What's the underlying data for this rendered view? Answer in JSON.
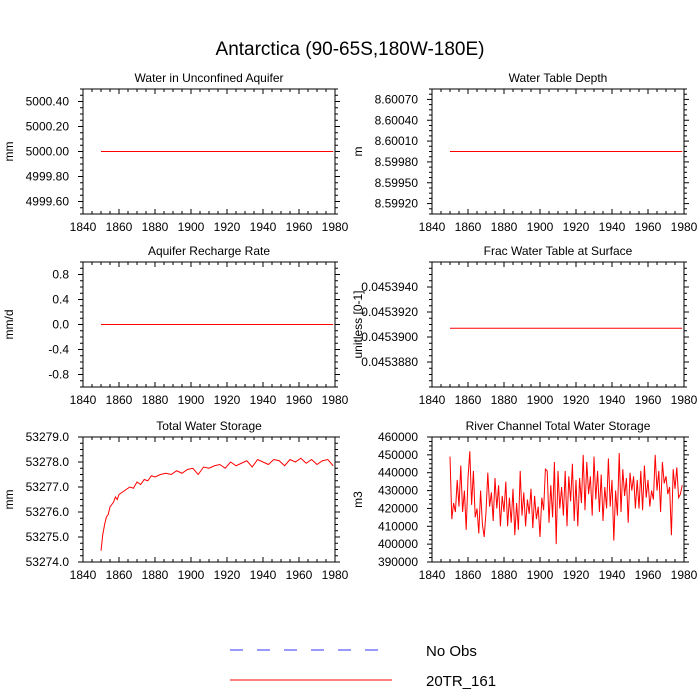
{
  "figure": {
    "title": "Antarctica (90-65S,180W-180E)",
    "legend": {
      "entries": [
        {
          "label": "No Obs",
          "color": "#3333ff",
          "style": "dashed"
        },
        {
          "label": "20TR_161",
          "color": "#ff0000",
          "style": "solid"
        }
      ]
    }
  },
  "chart_data": [
    {
      "type": "line",
      "title": "Water in Unconfined Aquifer",
      "xlabel": "",
      "ylabel": "mm",
      "xlim": [
        1840,
        1980
      ],
      "ylim": [
        4999.5,
        5000.5
      ],
      "xticks": [
        1840,
        1860,
        1880,
        1900,
        1920,
        1940,
        1960,
        1980
      ],
      "xtick_labels": [
        "1840",
        "1860",
        "1880",
        "1900",
        "1920",
        "1940",
        "1960",
        "1980"
      ],
      "yticks": [
        4999.6,
        4999.8,
        5000.0,
        5000.2,
        5000.4
      ],
      "ytick_labels": [
        "4999.60",
        "4999.80",
        "5000.00",
        "5000.20",
        "5000.40"
      ],
      "series": [
        {
          "name": "20TR_161",
          "color": "#ff0000",
          "x": [
            1850,
            1979
          ],
          "values": [
            5000.0,
            5000.0
          ]
        }
      ]
    },
    {
      "type": "line",
      "title": "Water Table Depth",
      "xlabel": "",
      "ylabel": "m",
      "xlim": [
        1840,
        1980
      ],
      "ylim": [
        8.59905,
        8.60085
      ],
      "xticks": [
        1840,
        1860,
        1880,
        1900,
        1920,
        1940,
        1960,
        1980
      ],
      "xtick_labels": [
        "1840",
        "1860",
        "1880",
        "1900",
        "1920",
        "1940",
        "1960",
        "1980"
      ],
      "yticks": [
        8.5992,
        8.5995,
        8.5998,
        8.6001,
        8.6004,
        8.6007
      ],
      "ytick_labels": [
        "8.59920",
        "8.59950",
        "8.59980",
        "8.60010",
        "8.60040",
        "8.60070"
      ],
      "series": [
        {
          "name": "20TR_161",
          "color": "#ff0000",
          "x": [
            1850,
            1979
          ],
          "values": [
            8.59995,
            8.59995
          ]
        }
      ]
    },
    {
      "type": "line",
      "title": "Aquifer Recharge Rate",
      "xlabel": "",
      "ylabel": "mm/d",
      "xlim": [
        1840,
        1980
      ],
      "ylim": [
        -1.0,
        1.0
      ],
      "xticks": [
        1840,
        1860,
        1880,
        1900,
        1920,
        1940,
        1960,
        1980
      ],
      "xtick_labels": [
        "1840",
        "1860",
        "1880",
        "1900",
        "1920",
        "1940",
        "1960",
        "1980"
      ],
      "yticks": [
        -0.8,
        -0.4,
        0.0,
        0.4,
        0.8
      ],
      "ytick_labels": [
        "-0.8",
        "-0.4",
        "0.0",
        "0.4",
        "0.8"
      ],
      "series": [
        {
          "name": "20TR_161",
          "color": "#ff0000",
          "x": [
            1850,
            1979
          ],
          "values": [
            0.0,
            0.0
          ]
        }
      ]
    },
    {
      "type": "line",
      "title": "Frac Water Table at Surface",
      "xlabel": "",
      "ylabel": "unitless [0-1]",
      "xlim": [
        1840,
        1980
      ],
      "ylim": [
        0.045386,
        0.045396
      ],
      "xticks": [
        1840,
        1860,
        1880,
        1900,
        1920,
        1940,
        1960,
        1980
      ],
      "xtick_labels": [
        "1840",
        "1860",
        "1880",
        "1900",
        "1920",
        "1940",
        "1960",
        "1980"
      ],
      "yticks": [
        0.045388,
        0.04539,
        0.045392,
        0.045394
      ],
      "ytick_labels": [
        "0.0453880",
        "0.0453900",
        "0.0453920",
        "0.0453940"
      ],
      "series": [
        {
          "name": "20TR_161",
          "color": "#ff0000",
          "x": [
            1850,
            1979
          ],
          "values": [
            0.0453907,
            0.0453907
          ]
        }
      ]
    },
    {
      "type": "line",
      "title": "Total Water Storage",
      "xlabel": "",
      "ylabel": "mm",
      "xlim": [
        1840,
        1980
      ],
      "ylim": [
        53274.0,
        53279.0
      ],
      "xticks": [
        1840,
        1860,
        1880,
        1900,
        1920,
        1940,
        1960,
        1980
      ],
      "xtick_labels": [
        "1840",
        "1860",
        "1880",
        "1900",
        "1920",
        "1940",
        "1960",
        "1980"
      ],
      "yticks": [
        53274.0,
        53275.0,
        53276.0,
        53277.0,
        53278.0,
        53279.0
      ],
      "ytick_labels": [
        "53274.0",
        "53275.0",
        "53276.0",
        "53277.0",
        "53278.0",
        "53279.0"
      ],
      "series": [
        {
          "name": "20TR_161",
          "color": "#ff0000",
          "x": [
            1850,
            1851,
            1852,
            1853,
            1854,
            1855,
            1856,
            1857,
            1858,
            1859,
            1860,
            1862,
            1864,
            1866,
            1868,
            1870,
            1872,
            1874,
            1876,
            1878,
            1880,
            1883,
            1886,
            1889,
            1892,
            1895,
            1898,
            1901,
            1904,
            1907,
            1910,
            1913,
            1916,
            1919,
            1922,
            1925,
            1928,
            1931,
            1934,
            1937,
            1940,
            1943,
            1946,
            1949,
            1952,
            1955,
            1958,
            1961,
            1964,
            1967,
            1970,
            1973,
            1976,
            1979
          ],
          "values": [
            53274.45,
            53275.1,
            53275.5,
            53275.8,
            53275.9,
            53276.2,
            53276.3,
            53276.4,
            53276.6,
            53276.5,
            53276.7,
            53276.8,
            53276.9,
            53277.0,
            53276.95,
            53277.2,
            53277.1,
            53277.3,
            53277.25,
            53277.45,
            53277.4,
            53277.5,
            53277.55,
            53277.5,
            53277.65,
            53277.55,
            53277.7,
            53277.75,
            53277.5,
            53277.8,
            53277.75,
            53277.85,
            53277.9,
            53277.75,
            53278.0,
            53277.85,
            53277.95,
            53278.05,
            53277.8,
            53278.1,
            53278.0,
            53277.9,
            53278.1,
            53278.05,
            53277.85,
            53278.1,
            53278.0,
            53278.15,
            53277.95,
            53278.1,
            53277.9,
            53278.05,
            53278.1,
            53277.85
          ]
        }
      ]
    },
    {
      "type": "line",
      "title": "River Channel Total Water Storage",
      "xlabel": "",
      "ylabel": "m3",
      "xlim": [
        1840,
        1980
      ],
      "ylim": [
        390000,
        460000
      ],
      "xticks": [
        1840,
        1860,
        1880,
        1900,
        1920,
        1940,
        1960,
        1980
      ],
      "xtick_labels": [
        "1840",
        "1860",
        "1880",
        "1900",
        "1920",
        "1940",
        "1960",
        "1980"
      ],
      "yticks": [
        390000,
        400000,
        410000,
        420000,
        430000,
        440000,
        450000,
        460000
      ],
      "ytick_labels": [
        "390000",
        "400000",
        "410000",
        "420000",
        "430000",
        "440000",
        "450000",
        "460000"
      ],
      "series": [
        {
          "name": "20TR_161",
          "color": "#ff0000",
          "x": [
            1850,
            1851,
            1852,
            1853,
            1854,
            1855,
            1856,
            1857,
            1858,
            1859,
            1860,
            1861,
            1862,
            1863,
            1864,
            1865,
            1866,
            1867,
            1868,
            1869,
            1870,
            1871,
            1872,
            1873,
            1874,
            1875,
            1876,
            1877,
            1878,
            1879,
            1880,
            1881,
            1882,
            1883,
            1884,
            1885,
            1886,
            1887,
            1888,
            1889,
            1890,
            1891,
            1892,
            1893,
            1894,
            1895,
            1896,
            1897,
            1898,
            1899,
            1900,
            1901,
            1902,
            1903,
            1904,
            1905,
            1906,
            1907,
            1908,
            1909,
            1910,
            1911,
            1912,
            1913,
            1914,
            1915,
            1916,
            1917,
            1918,
            1919,
            1920,
            1921,
            1922,
            1923,
            1924,
            1925,
            1926,
            1927,
            1928,
            1929,
            1930,
            1931,
            1932,
            1933,
            1934,
            1935,
            1936,
            1937,
            1938,
            1939,
            1940,
            1941,
            1942,
            1943,
            1944,
            1945,
            1946,
            1947,
            1948,
            1949,
            1950,
            1951,
            1952,
            1953,
            1954,
            1955,
            1956,
            1957,
            1958,
            1959,
            1960,
            1961,
            1962,
            1963,
            1964,
            1965,
            1966,
            1967,
            1968,
            1969,
            1970,
            1971,
            1972,
            1973,
            1974,
            1975,
            1976,
            1977,
            1978,
            1979
          ],
          "values": [
            449000,
            414000,
            423000,
            418000,
            436000,
            421000,
            444000,
            418000,
            430000,
            408000,
            437000,
            452000,
            422000,
            441000,
            415000,
            420000,
            406000,
            430000,
            411000,
            404000,
            418000,
            440000,
            421000,
            429000,
            413000,
            437000,
            420000,
            433000,
            410000,
            427000,
            418000,
            435000,
            410000,
            426000,
            412000,
            431000,
            405000,
            423000,
            408000,
            441000,
            416000,
            429000,
            410000,
            425000,
            417000,
            431000,
            409000,
            427000,
            414000,
            421000,
            404000,
            426000,
            419000,
            442000,
            441000,
            412000,
            433000,
            415000,
            446000,
            400000,
            441000,
            420000,
            432000,
            416000,
            441000,
            410000,
            438000,
            424000,
            445000,
            413000,
            436000,
            410000,
            437000,
            423000,
            450000,
            419000,
            446000,
            428000,
            438000,
            416000,
            449000,
            425000,
            441000,
            418000,
            439000,
            413000,
            432000,
            420000,
            448000,
            421000,
            436000,
            402000,
            430000,
            416000,
            451000,
            418000,
            442000,
            427000,
            437000,
            412000,
            440000,
            430000,
            438000,
            420000,
            436000,
            420000,
            441000,
            419000,
            444000,
            426000,
            436000,
            421000,
            430000,
            425000,
            450000,
            430000,
            441000,
            418000,
            446000,
            434000,
            438000,
            428000,
            432000,
            405000,
            442000,
            431000,
            443000,
            426000,
            428000,
            433000
          ]
        }
      ]
    }
  ]
}
